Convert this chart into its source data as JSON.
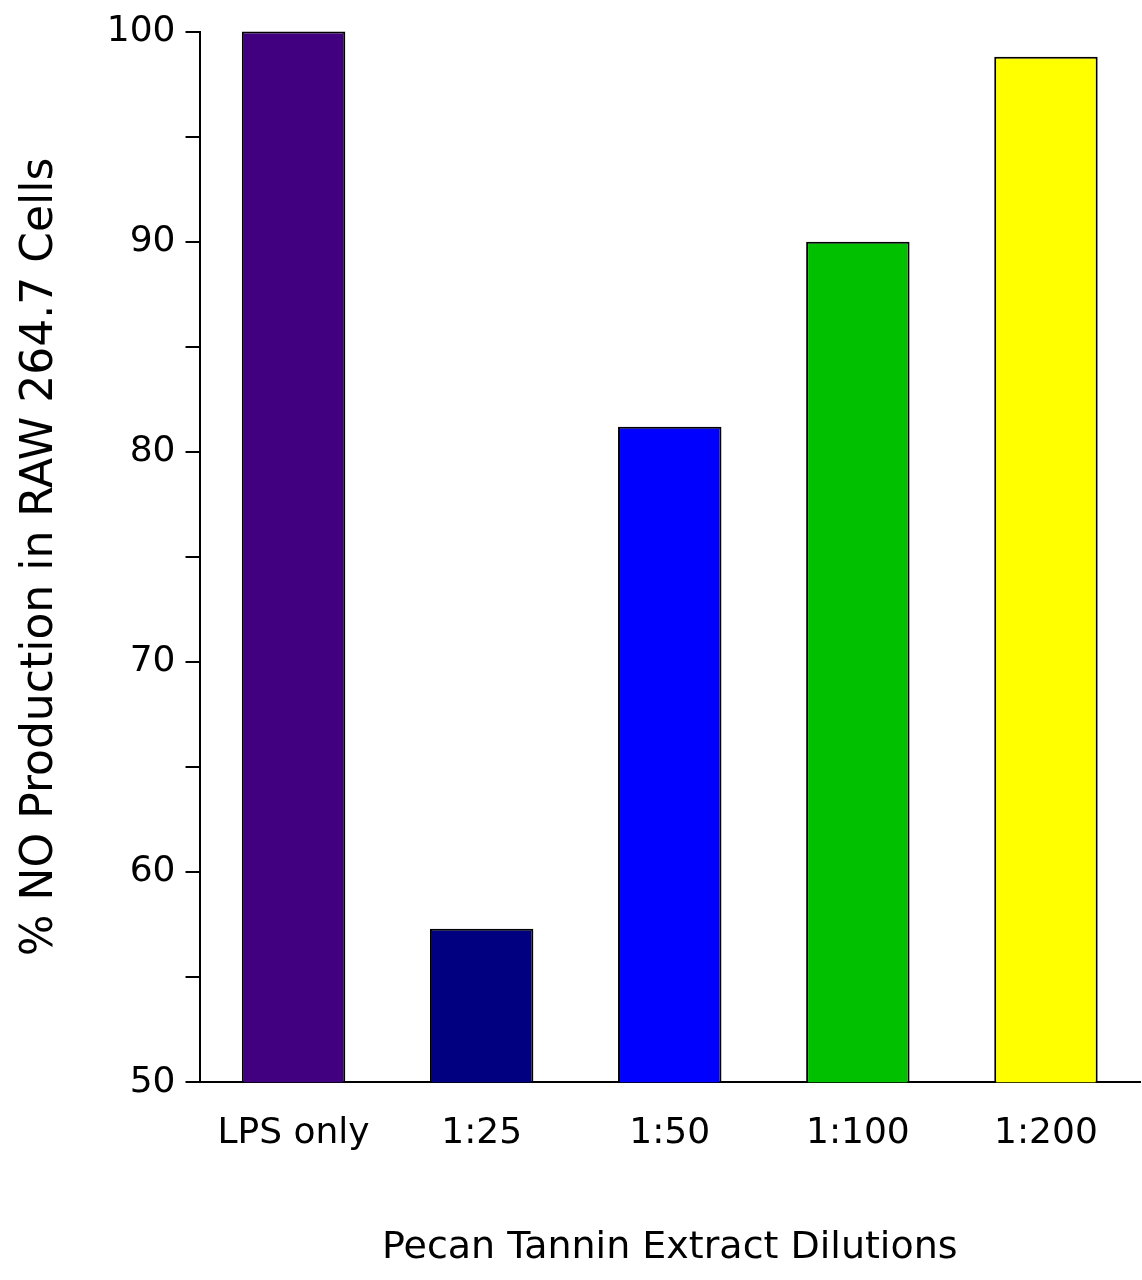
{
  "chart_data": {
    "type": "bar",
    "xlabel": "Pecan Tannin Extract Dilutions",
    "ylabel": "% NO Production in RAW 264.7 Cells",
    "categories": [
      "LPS only",
      "1:25",
      "1:50",
      "1:100",
      "1:200"
    ],
    "values": [
      100,
      57.3,
      81.2,
      90,
      98.8
    ],
    "colors": [
      "#400080",
      "#000080",
      "#0000ff",
      "#00c000",
      "#ffff00"
    ],
    "ylim": [
      50,
      100
    ],
    "yticks": [
      50,
      {
        "value": 55,
        "label": null
      },
      60,
      {
        "value": 65,
        "label": null
      },
      70,
      {
        "value": 75,
        "label": null
      },
      80,
      {
        "value": 85,
        "label": null
      },
      90,
      {
        "value": 95,
        "label": null
      },
      100
    ],
    "grid": false,
    "legend": false
  }
}
